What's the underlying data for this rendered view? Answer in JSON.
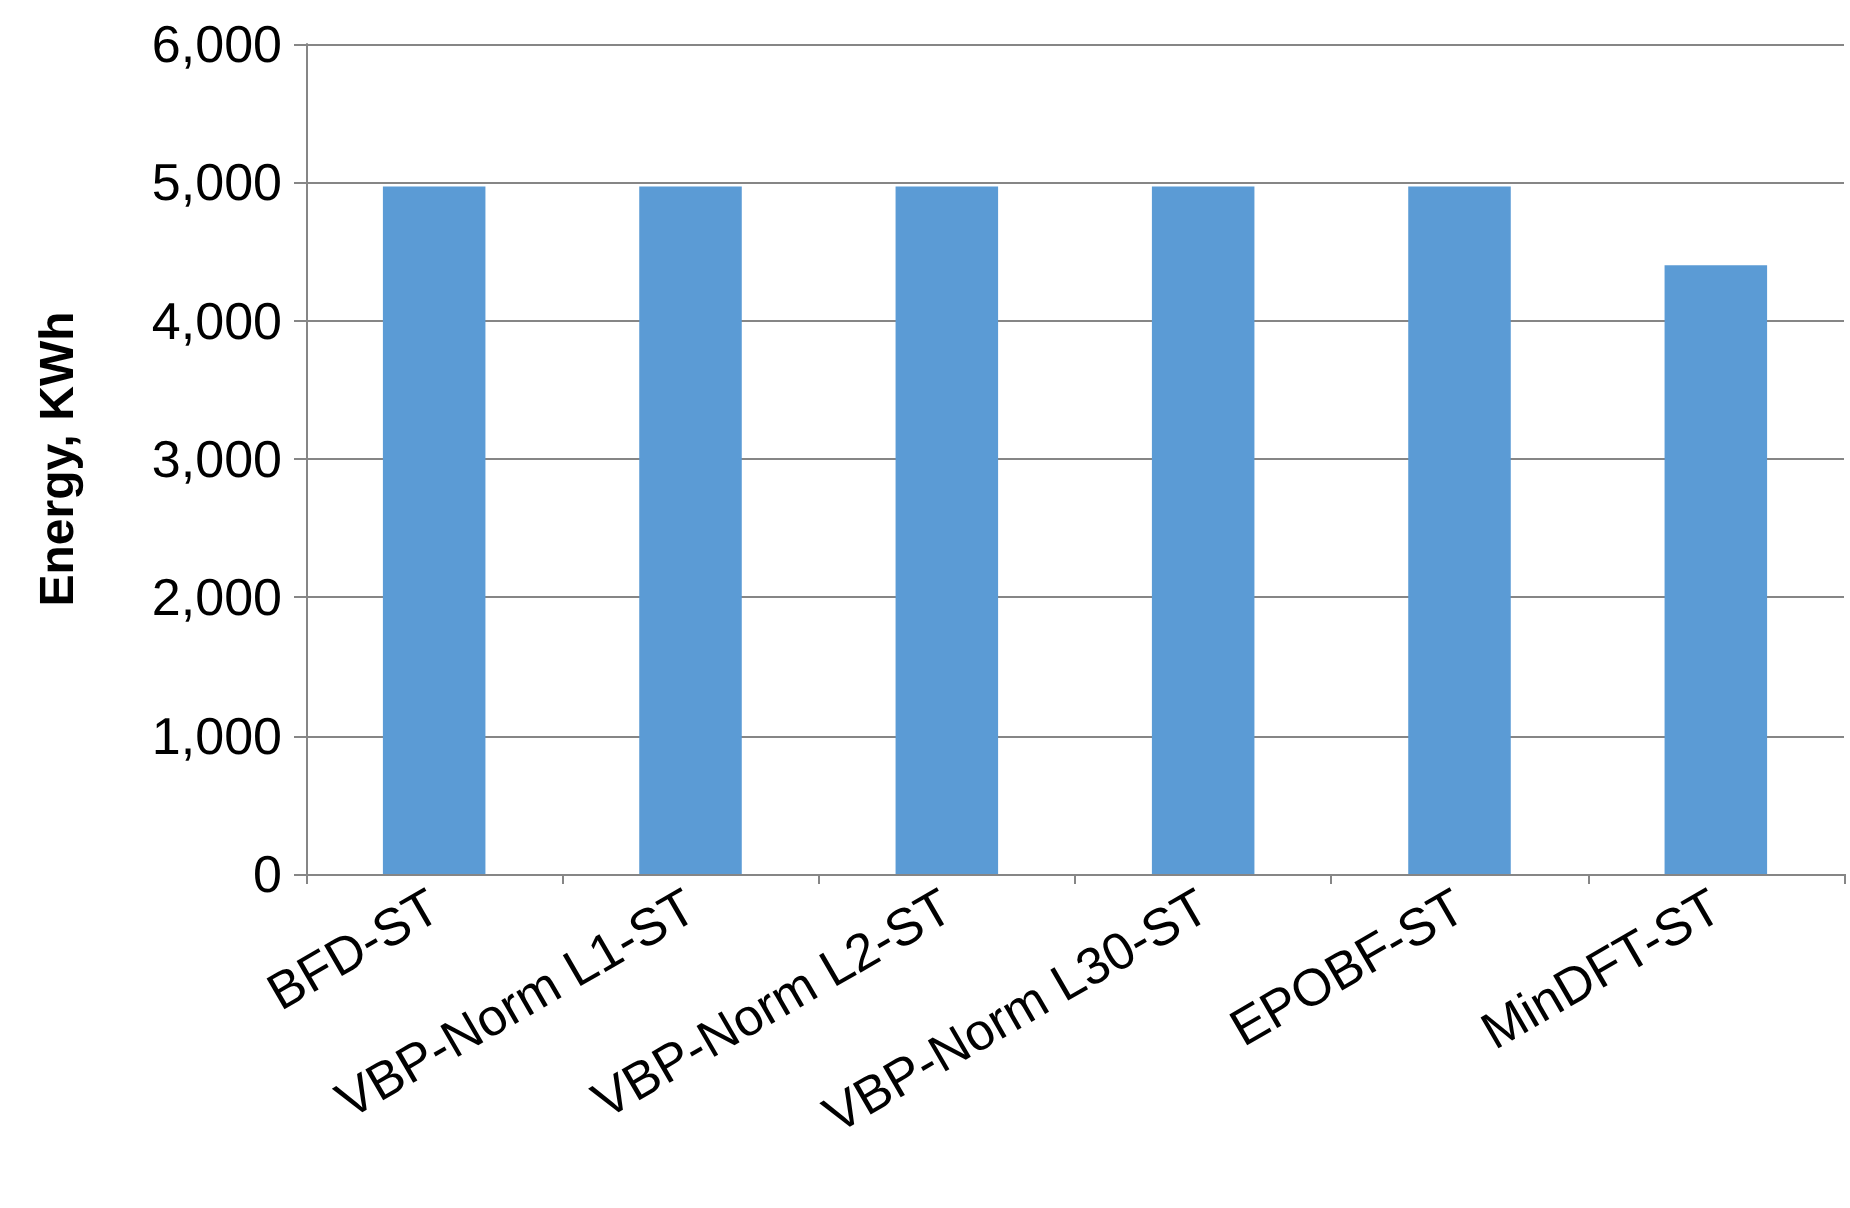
{
  "chart_data": {
    "type": "bar",
    "ylabel": "Energy, KWh",
    "categories": [
      "BFD-ST",
      "VBP-Norm L1-ST",
      "VBP-Norm L2-ST",
      "VBP-Norm L30-ST",
      "EPOBF-ST",
      "MinDFT-ST"
    ],
    "values": [
      4970,
      4970,
      4970,
      4970,
      4970,
      4400
    ],
    "color": "#5b9bd5",
    "ylim": [
      0,
      6000
    ],
    "yticks": [
      0,
      {
        "value": 1000,
        "label": "1,000"
      },
      {
        "value": 2000,
        "label": "2,000"
      },
      {
        "value": 3000,
        "label": "3,000"
      },
      {
        "value": 4000,
        "label": "4,000"
      },
      {
        "value": 5000,
        "label": "5,000"
      },
      {
        "value": 6000,
        "label": "6,000"
      }
    ],
    "grid": "y"
  }
}
